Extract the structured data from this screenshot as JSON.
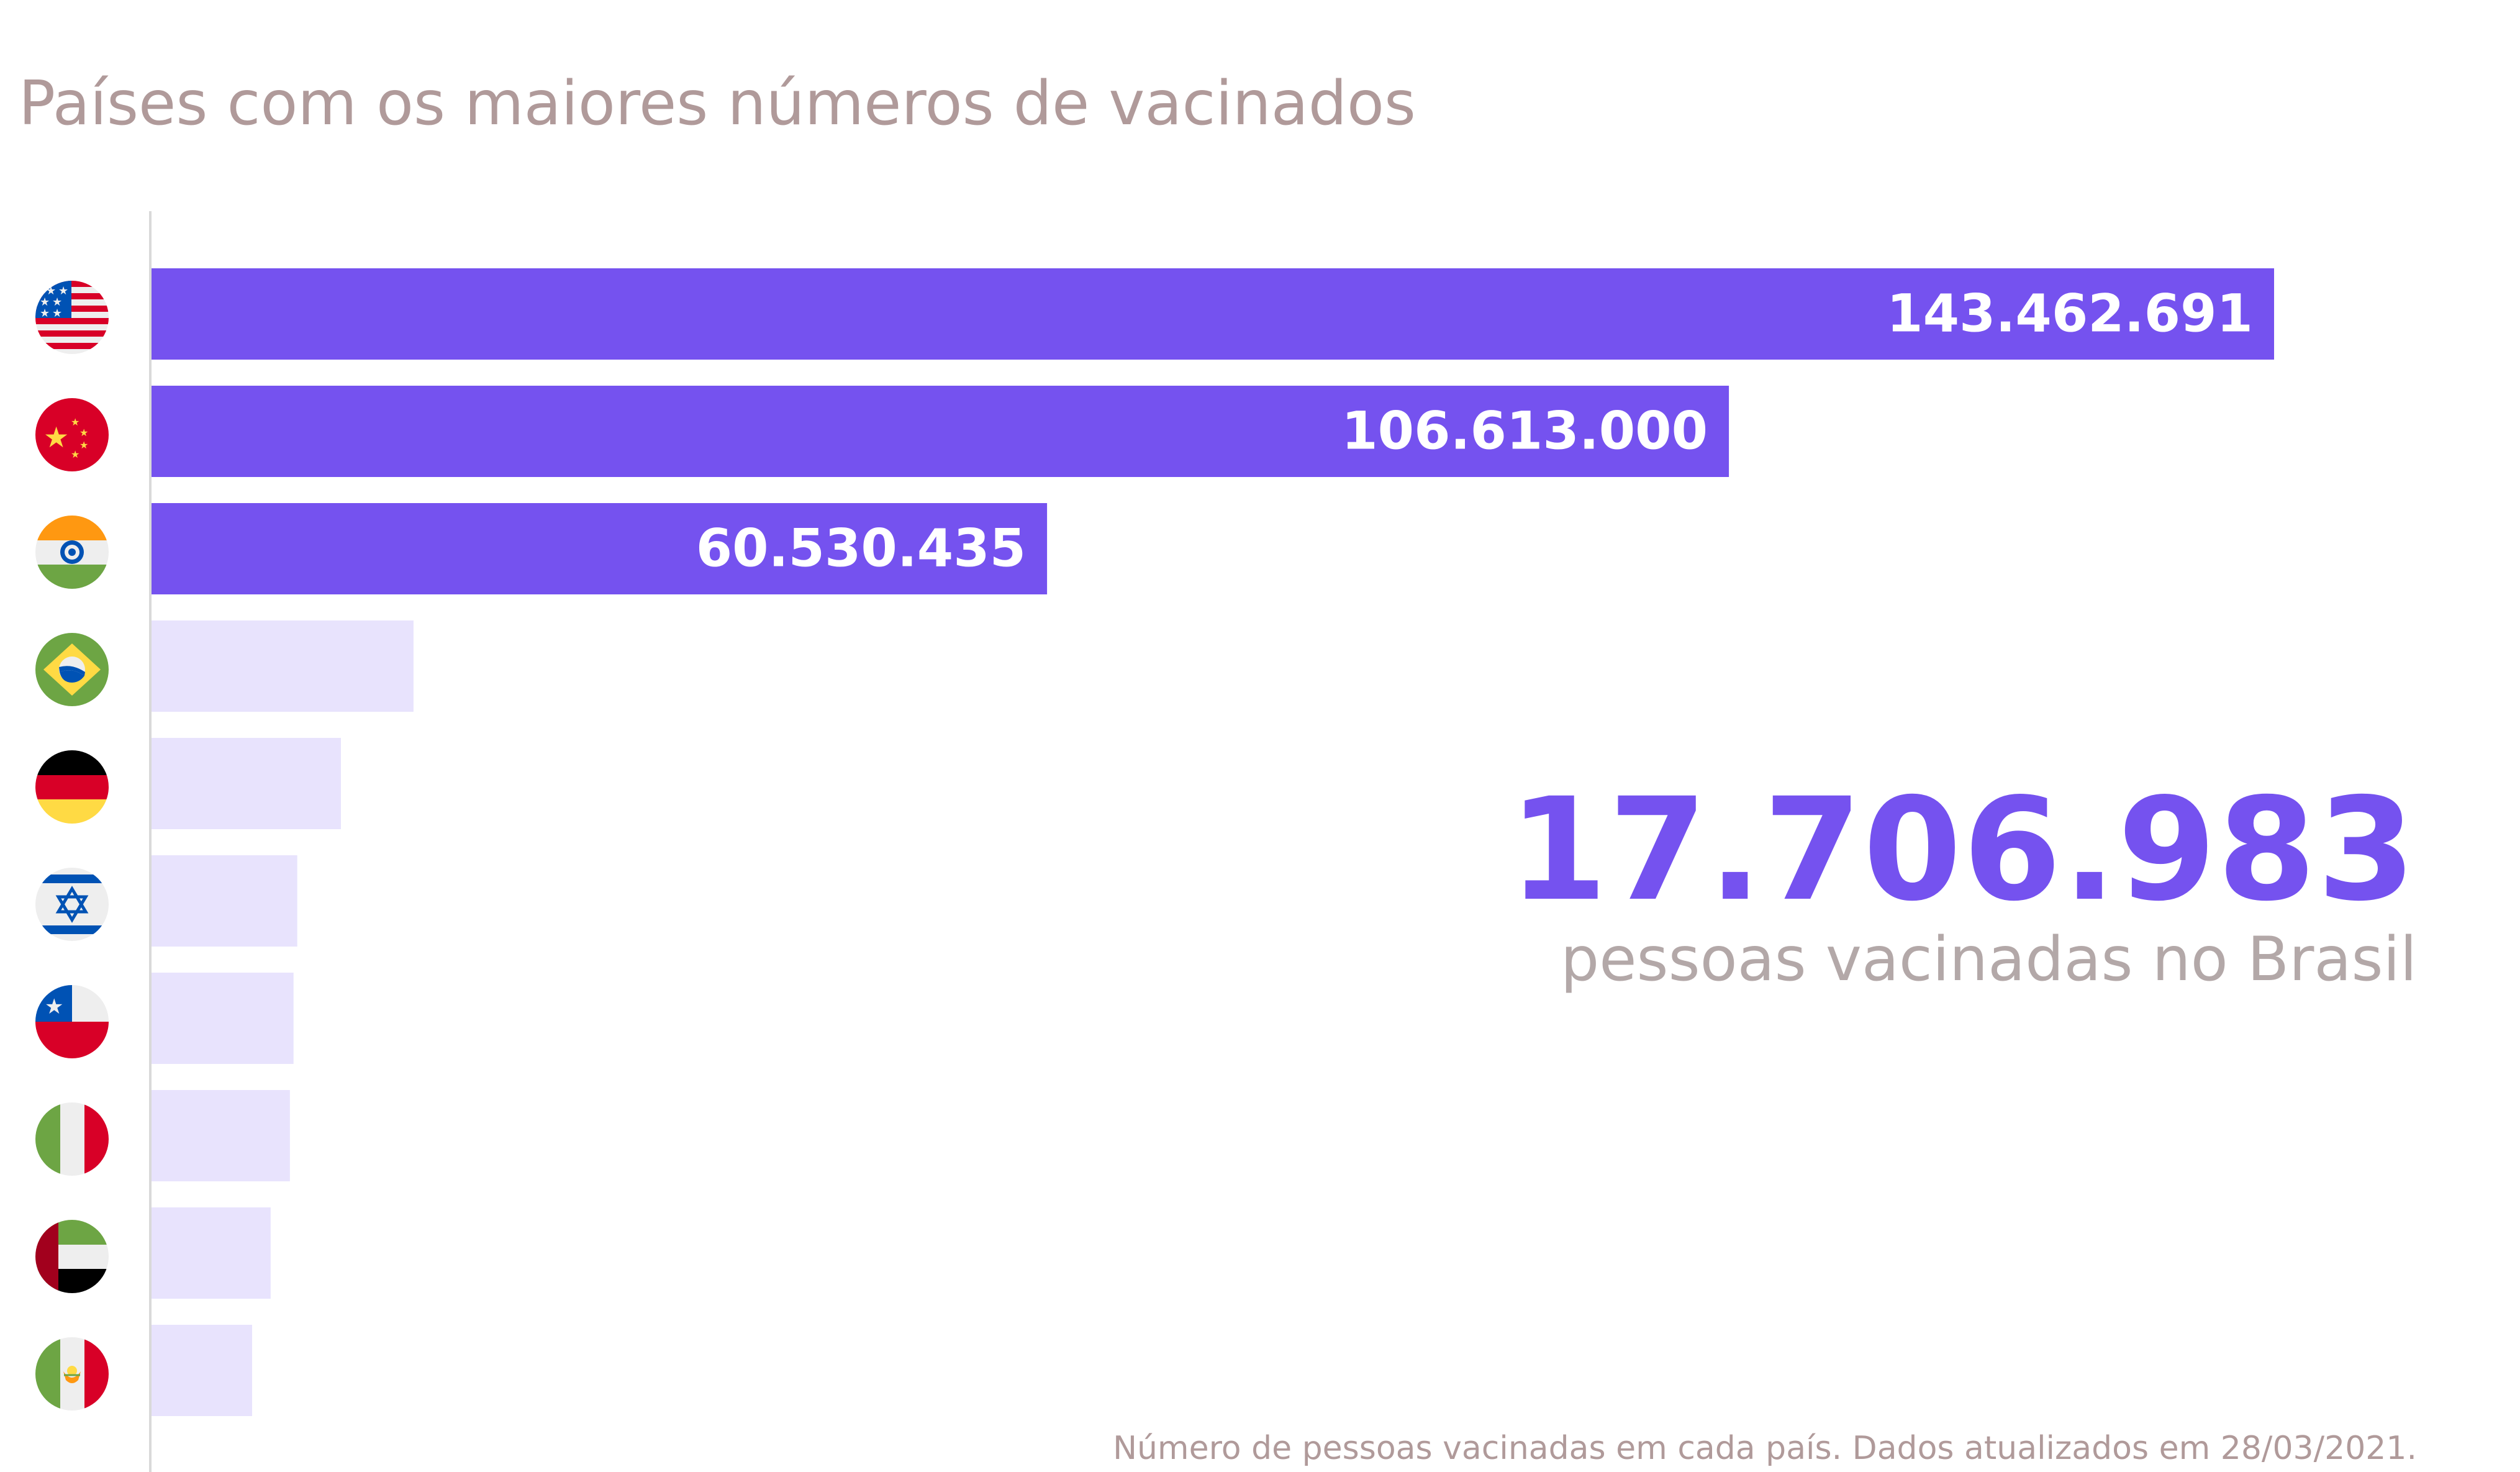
{
  "title": "Países com os maiores números de vacinados",
  "highlight": {
    "value": "17.706.983",
    "caption": "pessoas vacinadas no Brasil"
  },
  "footnote": "Número de pessoas vacinadas em cada país. Dados atualizados em 28/03/2021.",
  "colors": {
    "bar_top": "#7552ef",
    "bar_other": "#e8e3fd",
    "label": "#ffffff",
    "axis": "#d9d9d9"
  },
  "chart_data": {
    "type": "bar",
    "orientation": "horizontal",
    "categories": [
      "united-states-flag-icon",
      "china-flag-icon",
      "india-flag-icon",
      "brazil-flag-icon",
      "germany-flag-icon",
      "israel-flag-icon",
      "chile-flag-icon",
      "italy-flag-icon",
      "uae-flag-icon",
      "mexico-flag-icon"
    ],
    "values": [
      143462691,
      106613000,
      60530435,
      17706983,
      12800000,
      9850000,
      9600000,
      9350000,
      8050000,
      6800000
    ],
    "labels": [
      "143.462.691",
      "106.613.000",
      "60.530.435",
      "",
      "",
      "",
      "",
      "",
      "",
      ""
    ],
    "highlighted_count": 3,
    "xlim": [
      0,
      143462691
    ],
    "grid": false,
    "legend": "none"
  }
}
